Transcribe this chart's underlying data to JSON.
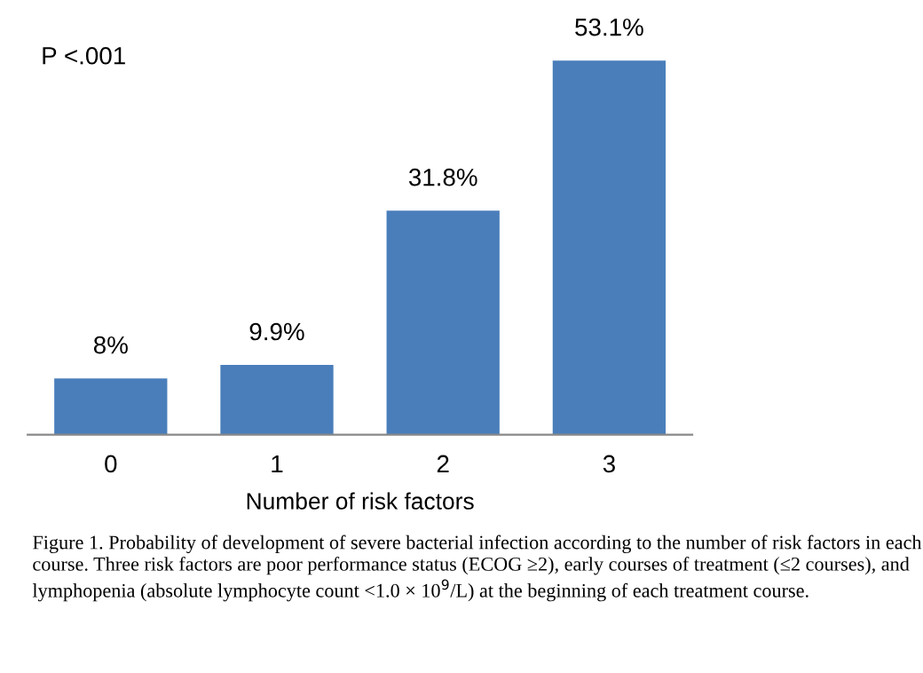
{
  "chart_data": {
    "type": "bar",
    "xlabel": "Number of risk factors",
    "categories": [
      "0",
      "1",
      "2",
      "3"
    ],
    "values": [
      8,
      9.9,
      31.8,
      53.1
    ],
    "value_labels": [
      "8%",
      "9.9%",
      "31.8%",
      "53.1%"
    ],
    "color": "#4a7ebb",
    "grid": false,
    "tick_labels": "x",
    "annotations": [
      "P <.001",
      "Figure 1. Probability of development of severe bacterial infection according to the number of risk factors in each course. Three risk factors are poor performance status (ECOG ≥2), early courses of treatment (≤2 courses), and lymphopenia (absolute lymphocyte count <1.0 × 10$^{9}$/L) at the beginning of each treatment course."
    ]
  }
}
